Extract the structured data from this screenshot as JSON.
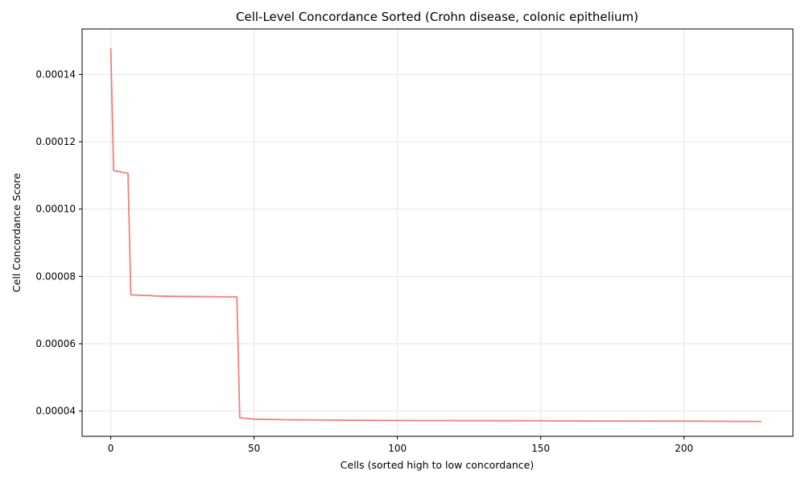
{
  "chart_data": {
    "type": "line",
    "title": "Cell-Level Concordance Sorted (Crohn disease, colonic epithelium)",
    "xlabel": "Cells (sorted high to low concordance)",
    "ylabel": "Cell Concordance Score",
    "xlim": [
      -10,
      238
    ],
    "ylim": [
      3.25e-05,
      0.0001535
    ],
    "xticks": [
      0,
      50,
      100,
      150,
      200
    ],
    "xtick_labels": [
      "0",
      "50",
      "100",
      "150",
      "200"
    ],
    "yticks": [
      4e-05,
      6e-05,
      8e-05,
      0.0001,
      0.00012,
      0.00014
    ],
    "ytick_labels": [
      "0.00004",
      "0.00006",
      "0.00008",
      "0.00010",
      "0.00012",
      "0.00014"
    ],
    "grid": true,
    "series": [
      {
        "color": "#f08080",
        "x": [
          0,
          1,
          3,
          4,
          6,
          7,
          10,
          14,
          15,
          20,
          30,
          44,
          45,
          50,
          62,
          80,
          100,
          150,
          200,
          227
        ],
        "y": [
          0.0001478,
          0.0001114,
          0.0001111,
          0.0001109,
          0.0001107,
          7.45e-05,
          7.44e-05,
          7.43e-05,
          7.42e-05,
          7.41e-05,
          7.4e-05,
          7.39e-05,
          3.8e-05,
          3.76e-05,
          3.74e-05,
          3.73e-05,
          3.72e-05,
          3.71e-05,
          3.7e-05,
          3.69e-05
        ]
      }
    ]
  }
}
